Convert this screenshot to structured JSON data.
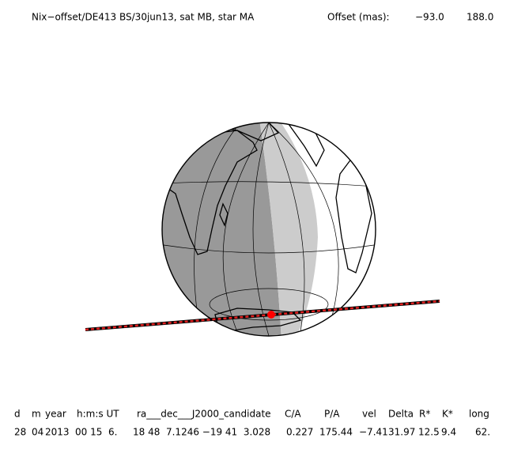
{
  "header": {
    "title": "Nix−offset/DE413 BS/30jun13, sat MB, star MA",
    "offset_label": "Offset (mas):",
    "offset_x": "−93.0",
    "offset_y": "188.0"
  },
  "table": {
    "columns": [
      "d",
      "m",
      "year",
      "h:m:s UT",
      "ra___dec___J2000_candidate",
      "C/A",
      "P/A",
      "vel",
      "Delta",
      "R*",
      "K*",
      "long"
    ],
    "rows": [
      [
        "28",
        "04",
        "2013",
        "00 15  6.",
        "18 48  7.1246 −19 41  3.028",
        "0.227",
        "175.44",
        "−7.41",
        "31.97",
        "12.5",
        "9.4",
        "62."
      ]
    ]
  }
}
